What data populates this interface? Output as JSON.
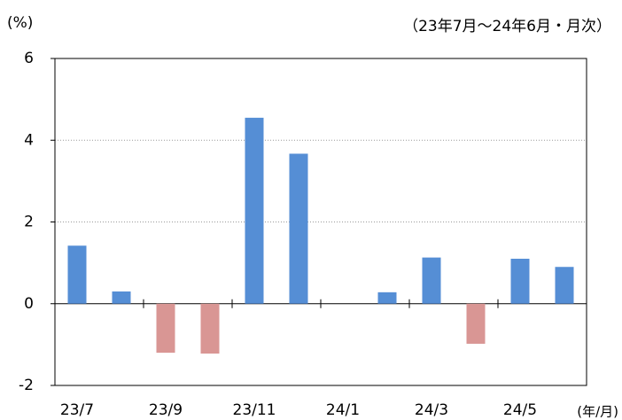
{
  "chart_data": {
    "type": "bar",
    "title": "(%)",
    "subtitle": "（23年7月～24年6月・月次）",
    "x_label": "(年/月)",
    "categories": [
      "23/7",
      null,
      "23/9",
      null,
      "23/11",
      null,
      "24/1",
      null,
      "24/3",
      null,
      "24/5",
      null
    ],
    "values": [
      1.42,
      0.3,
      -1.2,
      -1.22,
      4.55,
      3.67,
      0,
      0.28,
      1.13,
      -0.98,
      1.1,
      0.9
    ],
    "color": "#558ed5",
    "negative_color": "#d99694",
    "ylim": [
      -2,
      6
    ],
    "yticks": [
      -2,
      0,
      2,
      4,
      6
    ],
    "grid": true
  }
}
